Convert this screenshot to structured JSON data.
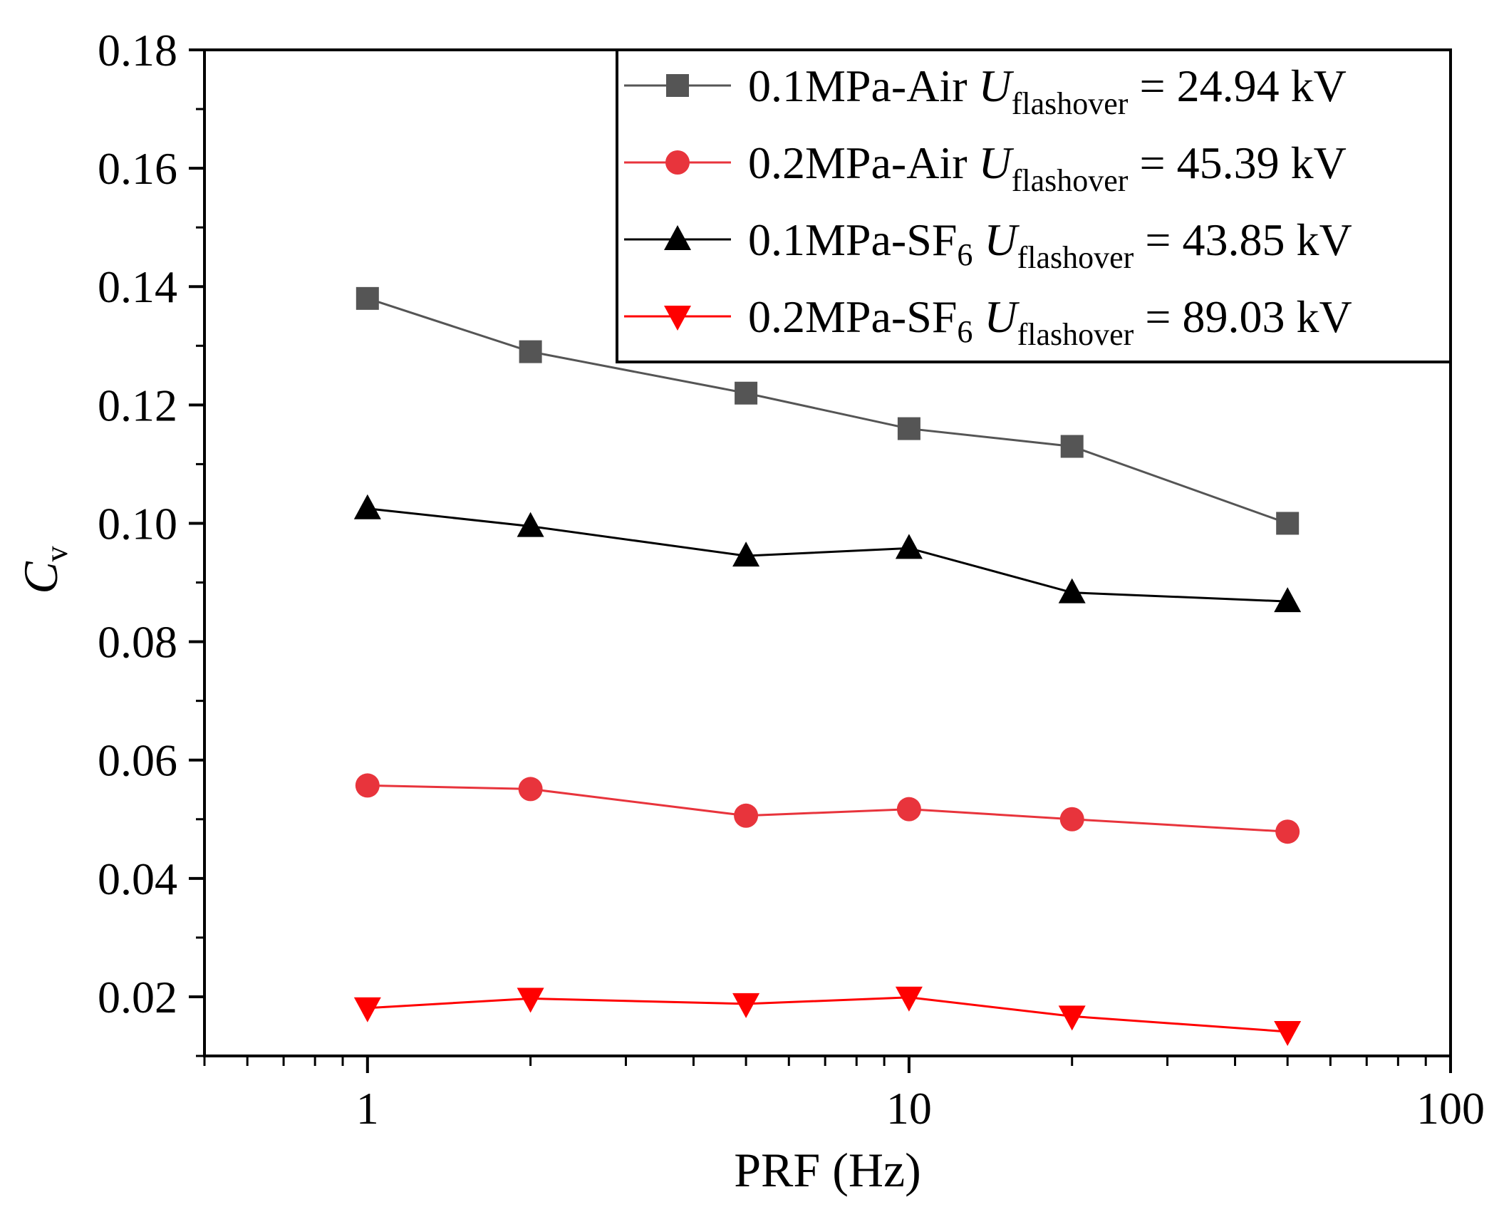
{
  "chart_data": {
    "type": "line",
    "xscale": "log",
    "xlim": [
      0.5,
      100
    ],
    "ylim": [
      0.01,
      0.18
    ],
    "xticks": [
      {
        "value": 1,
        "label": "1"
      },
      {
        "value": 10,
        "label": "10"
      },
      {
        "value": 100,
        "label": "100"
      }
    ],
    "yticks": [
      {
        "value": 0.02,
        "label": "0.02"
      },
      {
        "value": 0.04,
        "label": "0.04"
      },
      {
        "value": 0.06,
        "label": "0.06"
      },
      {
        "value": 0.08,
        "label": "0.08"
      },
      {
        "value": 0.1,
        "label": "0.10"
      },
      {
        "value": 0.12,
        "label": "0.12"
      },
      {
        "value": 0.14,
        "label": "0.14"
      },
      {
        "value": 0.16,
        "label": "0.16"
      },
      {
        "value": 0.18,
        "label": "0.18"
      }
    ],
    "xlabel": "PRF (Hz)",
    "ylabel": {
      "main": "C",
      "sub": "v"
    },
    "legend_position": "top-right",
    "x": [
      1,
      2,
      5,
      10,
      20,
      50
    ],
    "series": [
      {
        "name": "0.1MPa-Air",
        "label_prefix": "0.1MPa-Air ",
        "label_prefix_sub": "",
        "label_var": "U",
        "label_var_sub": "flashover",
        "label_value": " = 24.94 kV",
        "color": "#555555",
        "marker": "square",
        "values": [
          0.138,
          0.129,
          0.122,
          0.116,
          0.113,
          0.1
        ]
      },
      {
        "name": "0.2MPa-Air",
        "label_prefix": "0.2MPa-Air ",
        "label_prefix_sub": "",
        "label_var": "U",
        "label_var_sub": "flashover",
        "label_value": " = 45.39 kV",
        "color": "#e8343c",
        "marker": "circle",
        "values": [
          0.0557,
          0.0551,
          0.0506,
          0.0517,
          0.05,
          0.0479
        ]
      },
      {
        "name": "0.1MPa-SF6",
        "label_prefix": "0.1MPa-SF",
        "label_prefix_sub": "6",
        "label_var": "U",
        "label_var_sub": "flashover",
        "label_value": " = 43.85 kV",
        "color": "#000000",
        "marker": "triangle-up",
        "values": [
          0.1025,
          0.0995,
          0.0945,
          0.0958,
          0.0883,
          0.0868
        ]
      },
      {
        "name": "0.2MPa-SF6",
        "label_prefix": "0.2MPa-SF",
        "label_prefix_sub": "6",
        "label_var": "U",
        "label_var_sub": "flashover",
        "label_value": " = 89.03 kV",
        "color": "#ff0000",
        "marker": "triangle-down",
        "values": [
          0.0181,
          0.0197,
          0.0188,
          0.0199,
          0.0167,
          0.0141
        ]
      }
    ]
  }
}
